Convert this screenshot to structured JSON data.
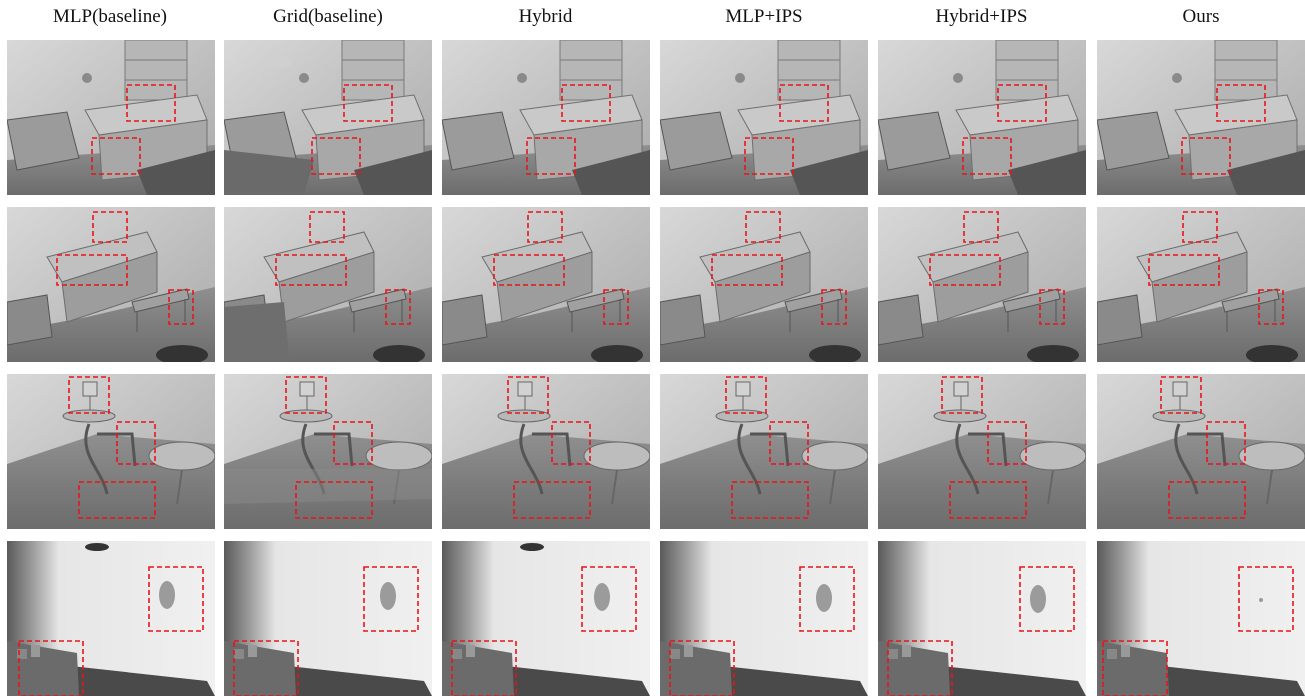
{
  "columns": [
    {
      "id": "mlp-baseline",
      "label": "MLP(baseline)"
    },
    {
      "id": "grid-baseline",
      "label": "Grid(baseline)"
    },
    {
      "id": "hybrid",
      "label": "Hybrid"
    },
    {
      "id": "mlp-ips",
      "label": "MLP+IPS"
    },
    {
      "id": "hybrid-ips",
      "label": "Hybrid+IPS"
    },
    {
      "id": "ours",
      "label": "Ours"
    }
  ],
  "rows": [
    {
      "id": "scene-1",
      "description_name": "desk-chair-scene"
    },
    {
      "id": "scene-2",
      "description_name": "piano-bench-scene"
    },
    {
      "id": "scene-3",
      "description_name": "table-chairs-lamp-scene"
    },
    {
      "id": "scene-4",
      "description_name": "wall-corner-scene"
    }
  ],
  "colors": {
    "highlight_box": "#e8141c",
    "background": "#ffffff"
  }
}
